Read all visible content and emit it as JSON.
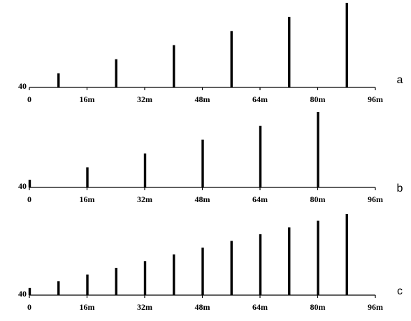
{
  "chart_data": [
    {
      "type": "bar",
      "panel_label": "a",
      "y_baseline_label": "40",
      "x_ticks": [
        "0",
        "16m",
        "32m",
        "48m",
        "64m",
        "80m",
        "96m"
      ],
      "x_tick_values": [
        0,
        16,
        32,
        48,
        64,
        80,
        96
      ],
      "xlim": [
        0,
        96
      ],
      "bars": [
        {
          "x": 8,
          "height": 1
        },
        {
          "x": 24,
          "height": 2
        },
        {
          "x": 40,
          "height": 3
        },
        {
          "x": 56,
          "height": 4
        },
        {
          "x": 72,
          "height": 5
        },
        {
          "x": 88,
          "height": 6
        }
      ],
      "ylim": [
        0,
        6
      ]
    },
    {
      "type": "bar",
      "panel_label": "b",
      "y_baseline_label": "40",
      "x_ticks": [
        "0",
        "16m",
        "32m",
        "48m",
        "64m",
        "80m",
        "96m"
      ],
      "x_tick_values": [
        0,
        16,
        32,
        48,
        64,
        80,
        96
      ],
      "xlim": [
        0,
        96
      ],
      "bars": [
        {
          "x": 0,
          "height": 0.5
        },
        {
          "x": 16,
          "height": 1.3
        },
        {
          "x": 32,
          "height": 2.2
        },
        {
          "x": 48,
          "height": 3.1
        },
        {
          "x": 64,
          "height": 4
        },
        {
          "x": 80,
          "height": 4.9
        }
      ],
      "ylim": [
        0,
        4.9
      ]
    },
    {
      "type": "bar",
      "panel_label": "c",
      "y_baseline_label": "40",
      "x_ticks": [
        "0",
        "16m",
        "32m",
        "48m",
        "64m",
        "80m",
        "96m"
      ],
      "x_tick_values": [
        0,
        16,
        32,
        48,
        64,
        80,
        96
      ],
      "xlim": [
        0,
        96
      ],
      "bars": [
        {
          "x": 0,
          "height": 0.9
        },
        {
          "x": 8,
          "height": 1.75
        },
        {
          "x": 16,
          "height": 2.6
        },
        {
          "x": 24,
          "height": 3.45
        },
        {
          "x": 32,
          "height": 4.3
        },
        {
          "x": 40,
          "height": 5.15
        },
        {
          "x": 48,
          "height": 6
        },
        {
          "x": 56,
          "height": 6.85
        },
        {
          "x": 64,
          "height": 7.7
        },
        {
          "x": 72,
          "height": 8.55
        },
        {
          "x": 80,
          "height": 9.4
        },
        {
          "x": 88,
          "height": 10.25
        }
      ],
      "ylim": [
        0,
        10.25
      ]
    }
  ]
}
